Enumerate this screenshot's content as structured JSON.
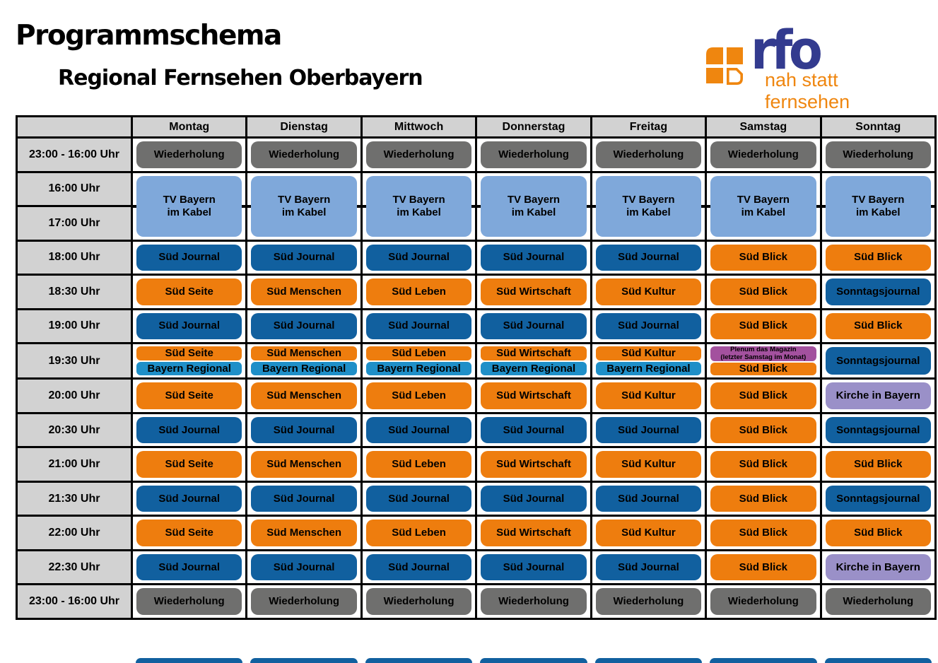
{
  "page": {
    "title": "Programmschema",
    "subtitle": "Regional Fernsehen Oberbayern"
  },
  "logo": {
    "wordmark": "rfo",
    "tagline": "nah statt fernsehen"
  },
  "colors": {
    "grid_line": "#000000",
    "header_bg": "#d2d2d2",
    "repeat_gray": "#6f6f6e",
    "kabel_blue": "#7fa8da",
    "journal_blue": "#11609f",
    "magazine_orange": "#ee7d0e",
    "regional_blue": "#1e8fc8",
    "plenum_purple": "#a3519e",
    "kirche_lavender": "#9a90c8",
    "logo_navy": "#333b8f",
    "logo_orange": "#ef860f"
  },
  "schedule": {
    "days": [
      "Montag",
      "Dienstag",
      "Mittwoch",
      "Donnerstag",
      "Freitag",
      "Samstag",
      "Sonntag"
    ],
    "rows": [
      {
        "time": "23:00 - 16:00 Uhr",
        "cells": [
          {
            "text": "Wiederholung",
            "type": "gray"
          },
          {
            "text": "Wiederholung",
            "type": "gray"
          },
          {
            "text": "Wiederholung",
            "type": "gray"
          },
          {
            "text": "Wiederholung",
            "type": "gray"
          },
          {
            "text": "Wiederholung",
            "type": "gray"
          },
          {
            "text": "Wiederholung",
            "type": "gray"
          },
          {
            "text": "Wiederholung",
            "type": "gray"
          }
        ]
      },
      {
        "time": "16:00 Uhr",
        "time2": "17:00 Uhr",
        "cells": [
          {
            "text": "TV Bayern\nim Kabel",
            "type": "kabel"
          },
          {
            "text": "TV Bayern\nim Kabel",
            "type": "kabel"
          },
          {
            "text": "TV Bayern\nim Kabel",
            "type": "kabel"
          },
          {
            "text": "TV Bayern\nim Kabel",
            "type": "kabel"
          },
          {
            "text": "TV Bayern\nim Kabel",
            "type": "kabel"
          },
          {
            "text": "TV Bayern\nim Kabel",
            "type": "kabel"
          },
          {
            "text": "TV Bayern\nim Kabel",
            "type": "kabel"
          }
        ]
      },
      {
        "time": "18:00 Uhr",
        "cells": [
          {
            "text": "Süd Journal",
            "type": "blue"
          },
          {
            "text": "Süd Journal",
            "type": "blue"
          },
          {
            "text": "Süd Journal",
            "type": "blue"
          },
          {
            "text": "Süd Journal",
            "type": "blue"
          },
          {
            "text": "Süd Journal",
            "type": "blue"
          },
          {
            "text": "Süd Blick",
            "type": "orange"
          },
          {
            "text": "Süd Blick",
            "type": "orange"
          }
        ]
      },
      {
        "time": "18:30 Uhr",
        "cells": [
          {
            "text": "Süd Seite",
            "type": "orange"
          },
          {
            "text": "Süd Menschen",
            "type": "orange"
          },
          {
            "text": "Süd Leben",
            "type": "orange"
          },
          {
            "text": "Süd Wirtschaft",
            "type": "orange"
          },
          {
            "text": "Süd Kultur",
            "type": "orange"
          },
          {
            "text": "Süd Blick",
            "type": "orange"
          },
          {
            "text": "Sonntagsjournal",
            "type": "blue"
          }
        ]
      },
      {
        "time": "19:00 Uhr",
        "cells": [
          {
            "text": "Süd Journal",
            "type": "blue"
          },
          {
            "text": "Süd Journal",
            "type": "blue"
          },
          {
            "text": "Süd Journal",
            "type": "blue"
          },
          {
            "text": "Süd Journal",
            "type": "blue"
          },
          {
            "text": "Süd Journal",
            "type": "blue"
          },
          {
            "text": "Süd Blick",
            "type": "orange"
          },
          {
            "text": "Süd Blick",
            "type": "orange"
          }
        ]
      },
      {
        "time": "19:30 Uhr",
        "cells": [
          {
            "split": [
              {
                "text": "Süd Seite",
                "type": "orange"
              },
              {
                "text": "Bayern Regional",
                "type": "cyan"
              }
            ]
          },
          {
            "split": [
              {
                "text": "Süd Menschen",
                "type": "orange"
              },
              {
                "text": "Bayern Regional",
                "type": "cyan"
              }
            ]
          },
          {
            "split": [
              {
                "text": "Süd Leben",
                "type": "orange"
              },
              {
                "text": "Bayern Regional",
                "type": "cyan"
              }
            ]
          },
          {
            "split": [
              {
                "text": "Süd Wirtschaft",
                "type": "orange"
              },
              {
                "text": "Bayern Regional",
                "type": "cyan"
              }
            ]
          },
          {
            "split": [
              {
                "text": "Süd Kultur",
                "type": "orange"
              },
              {
                "text": "Bayern Regional",
                "type": "cyan"
              }
            ]
          },
          {
            "split": [
              {
                "text": "Plenum das Magazin\n(letzter Samstag im Monat)",
                "type": "purple",
                "small": true
              },
              {
                "text": "Süd Blick",
                "type": "orange"
              }
            ]
          },
          {
            "text": "Sonntagsjournal",
            "type": "blue"
          }
        ]
      },
      {
        "time": "20:00 Uhr",
        "cells": [
          {
            "text": "Süd Seite",
            "type": "orange"
          },
          {
            "text": "Süd Menschen",
            "type": "orange"
          },
          {
            "text": "Süd Leben",
            "type": "orange"
          },
          {
            "text": "Süd Wirtschaft",
            "type": "orange"
          },
          {
            "text": "Süd Kultur",
            "type": "orange"
          },
          {
            "text": "Süd Blick",
            "type": "orange"
          },
          {
            "text": "Kirche in Bayern",
            "type": "lavender"
          }
        ]
      },
      {
        "time": "20:30 Uhr",
        "cells": [
          {
            "text": "Süd Journal",
            "type": "blue"
          },
          {
            "text": "Süd Journal",
            "type": "blue"
          },
          {
            "text": "Süd Journal",
            "type": "blue"
          },
          {
            "text": "Süd Journal",
            "type": "blue"
          },
          {
            "text": "Süd Journal",
            "type": "blue"
          },
          {
            "text": "Süd Blick",
            "type": "orange"
          },
          {
            "text": "Sonntagsjournal",
            "type": "blue"
          }
        ]
      },
      {
        "time": "21:00 Uhr",
        "cells": [
          {
            "text": "Süd Seite",
            "type": "orange"
          },
          {
            "text": "Süd Menschen",
            "type": "orange"
          },
          {
            "text": "Süd Leben",
            "type": "orange"
          },
          {
            "text": "Süd Wirtschaft",
            "type": "orange"
          },
          {
            "text": "Süd Kultur",
            "type": "orange"
          },
          {
            "text": "Süd Blick",
            "type": "orange"
          },
          {
            "text": "Süd Blick",
            "type": "orange"
          }
        ]
      },
      {
        "time": "21:30 Uhr",
        "cells": [
          {
            "text": "Süd Journal",
            "type": "blue"
          },
          {
            "text": "Süd Journal",
            "type": "blue"
          },
          {
            "text": "Süd Journal",
            "type": "blue"
          },
          {
            "text": "Süd Journal",
            "type": "blue"
          },
          {
            "text": "Süd Journal",
            "type": "blue"
          },
          {
            "text": "Süd Blick",
            "type": "orange"
          },
          {
            "text": "Sonntagsjournal",
            "type": "blue"
          }
        ]
      },
      {
        "time": "22:00 Uhr",
        "cells": [
          {
            "text": "Süd Seite",
            "type": "orange"
          },
          {
            "text": "Süd Menschen",
            "type": "orange"
          },
          {
            "text": "Süd Leben",
            "type": "orange"
          },
          {
            "text": "Süd Wirtschaft",
            "type": "orange"
          },
          {
            "text": "Süd Kultur",
            "type": "orange"
          },
          {
            "text": "Süd Blick",
            "type": "orange"
          },
          {
            "text": "Süd Blick",
            "type": "orange"
          }
        ]
      },
      {
        "time": "22:30 Uhr",
        "cells": [
          {
            "text": "Süd Journal",
            "type": "blue"
          },
          {
            "text": "Süd Journal",
            "type": "blue"
          },
          {
            "text": "Süd Journal",
            "type": "blue"
          },
          {
            "text": "Süd Journal",
            "type": "blue"
          },
          {
            "text": "Süd Journal",
            "type": "blue"
          },
          {
            "text": "Süd Blick",
            "type": "orange"
          },
          {
            "text": "Kirche in Bayern",
            "type": "lavender"
          }
        ]
      },
      {
        "time": "23:00 - 16:00 Uhr",
        "cells": [
          {
            "text": "Wiederholung",
            "type": "gray"
          },
          {
            "text": "Wiederholung",
            "type": "gray"
          },
          {
            "text": "Wiederholung",
            "type": "gray"
          },
          {
            "text": "Wiederholung",
            "type": "gray"
          },
          {
            "text": "Wiederholung",
            "type": "gray"
          },
          {
            "text": "Wiederholung",
            "type": "gray"
          },
          {
            "text": "Wiederholung",
            "type": "gray"
          }
        ]
      }
    ]
  }
}
